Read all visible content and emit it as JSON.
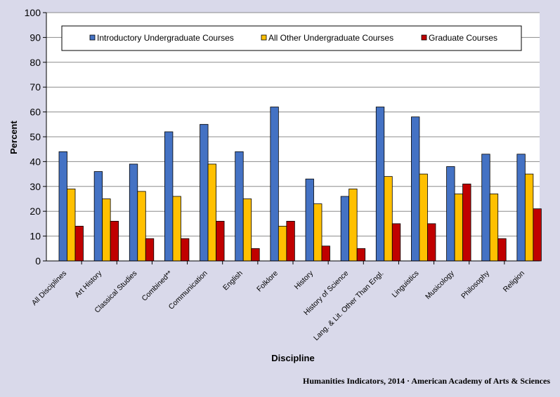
{
  "chart_data": {
    "type": "bar",
    "xlabel": "Discipline",
    "ylabel": "Percent",
    "ylim": [
      0,
      100
    ],
    "yticks": [
      0,
      10,
      20,
      30,
      40,
      50,
      60,
      70,
      80,
      90,
      100
    ],
    "grid": true,
    "legend_position": "top",
    "categories": [
      "All Disciplines",
      "Art History",
      "Classical Studies",
      "Combined**",
      "Communication",
      "English",
      "Folklore",
      "History",
      "History of Science",
      "Lang. & Lit. Other Than Engl.",
      "Linguistics",
      "Musicology",
      "Philosophy",
      "Religion"
    ],
    "series": [
      {
        "name": "Introductory Undergraduate Courses",
        "color": "#4472c4",
        "values": [
          44,
          36,
          39,
          52,
          55,
          44,
          62,
          33,
          26,
          62,
          58,
          38,
          43,
          43
        ]
      },
      {
        "name": "All Other Undergraduate Courses",
        "color": "#ffc000",
        "values": [
          29,
          25,
          28,
          26,
          39,
          25,
          14,
          23,
          29,
          34,
          35,
          27,
          27,
          35
        ]
      },
      {
        "name": "Graduate Courses",
        "color": "#c00000",
        "values": [
          14,
          16,
          9,
          9,
          16,
          5,
          16,
          6,
          5,
          15,
          15,
          31,
          9,
          21
        ]
      }
    ],
    "source": "Humanities  Indicators, 2014 · American Academy of Arts & Sciences"
  }
}
